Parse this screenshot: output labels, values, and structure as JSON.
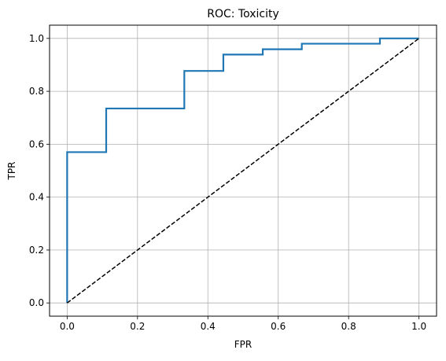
{
  "chart_data": {
    "type": "line",
    "title": "ROC: Toxicity",
    "xlabel": "FPR",
    "ylabel": "TPR",
    "xlim": [
      -0.05,
      1.05
    ],
    "ylim": [
      -0.05,
      1.05
    ],
    "xticks": [
      0.0,
      0.2,
      0.4,
      0.6,
      0.8,
      1.0
    ],
    "yticks": [
      0.0,
      0.2,
      0.4,
      0.6,
      0.8,
      1.0
    ],
    "xtick_labels": [
      "0.0",
      "0.2",
      "0.4",
      "0.6",
      "0.8",
      "1.0"
    ],
    "ytick_labels": [
      "0.0",
      "0.2",
      "0.4",
      "0.6",
      "0.8",
      "1.0"
    ],
    "grid": true,
    "series": [
      {
        "style": "solid",
        "color": "#1f77b4",
        "x": [
          0.0,
          0.0,
          0.111,
          0.111,
          0.333,
          0.333,
          0.444,
          0.444,
          0.556,
          0.556,
          0.667,
          0.667,
          0.889,
          0.889,
          1.0
        ],
        "y": [
          0.0,
          0.57,
          0.57,
          0.735,
          0.735,
          0.877,
          0.877,
          0.939,
          0.939,
          0.959,
          0.959,
          0.98,
          0.98,
          1.0,
          1.0
        ]
      },
      {
        "style": "dashed",
        "color": "#000000",
        "x": [
          0.0,
          1.0
        ],
        "y": [
          0.0,
          1.0
        ]
      }
    ]
  }
}
